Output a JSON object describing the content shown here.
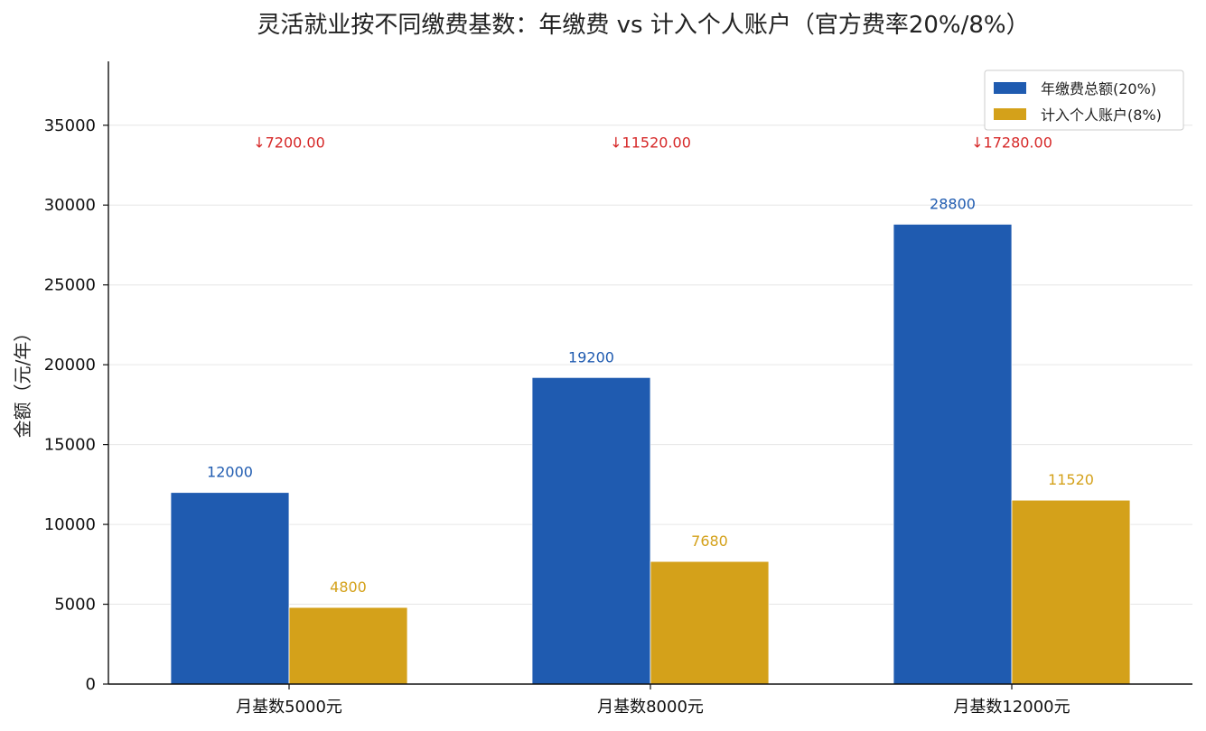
{
  "chart_data": {
    "type": "bar",
    "title": "灵活就业按不同缴费基数：年缴费 vs 计入个人账户（官方费率20%/8%）",
    "xlabel": "",
    "ylabel": "金额（元/年）",
    "categories": [
      "月基数5000元",
      "月基数8000元",
      "月基数12000元"
    ],
    "series": [
      {
        "name": "年缴费总额(20%)",
        "color": "#1f5bb0",
        "values": [
          12000,
          19200,
          28800
        ],
        "labels": [
          "12000",
          "19200",
          "28800"
        ]
      },
      {
        "name": "计入个人账户(8%)",
        "color": "#d4a11a",
        "values": [
          4800,
          7680,
          11520
        ],
        "labels": [
          "4800",
          "7680",
          "11520"
        ]
      }
    ],
    "differences": [
      "↓7200.00",
      "↓11520.00",
      "↓17280.00"
    ],
    "difference_color": "#d62828",
    "ylim": [
      0,
      39000
    ],
    "yticks": [
      0,
      5000,
      10000,
      15000,
      20000,
      25000,
      30000,
      35000
    ],
    "ytick_labels": [
      "0",
      "5000",
      "10000",
      "15000",
      "20000",
      "25000",
      "30000",
      "35000"
    ],
    "grid": true,
    "legend_position": "top-right"
  }
}
